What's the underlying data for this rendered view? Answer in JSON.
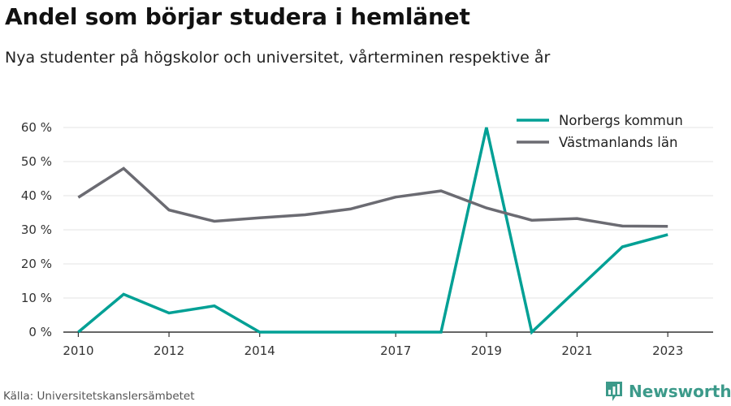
{
  "chart_data": {
    "type": "line",
    "title": "Andel som börjar studera i hemlänet",
    "subtitle": "Nya studenter på högskolor och universitet, vårterminen respektive år",
    "x": [
      2010,
      2011,
      2012,
      2013,
      2014,
      2015,
      2016,
      2017,
      2018,
      2019,
      2020,
      2021,
      2022,
      2023
    ],
    "x_tick_labels": [
      "2010",
      "2012",
      "2014",
      "2017",
      "2019",
      "2021",
      "2023"
    ],
    "y_ticks": [
      0,
      10,
      20,
      30,
      40,
      50,
      60
    ],
    "y_tick_labels": [
      "0 %",
      "10 %",
      "20 %",
      "30 %",
      "40 %",
      "50 %",
      "60 %"
    ],
    "ylim": [
      0,
      60
    ],
    "grid": "horizontal",
    "legend_position": "top-right",
    "series": [
      {
        "name": "Norbergs kommun",
        "color": "#00a095",
        "values": [
          0,
          11.1,
          5.6,
          7.7,
          0,
          0,
          0,
          0,
          0,
          60,
          0,
          12.5,
          25,
          28.6
        ]
      },
      {
        "name": "Västmanlands län",
        "color": "#6b6b72",
        "values": [
          39.5,
          48,
          35.8,
          32.5,
          33.5,
          34.4,
          36.1,
          39.6,
          41.4,
          36.4,
          32.8,
          33.3,
          31.1,
          31
        ]
      }
    ]
  },
  "footer": {
    "source": "Källa: Universitetskanslersämbetet",
    "brand": "Newsworthy",
    "brand_icon": "bar-chart-icon",
    "brand_color": "#3c9a8a"
  }
}
